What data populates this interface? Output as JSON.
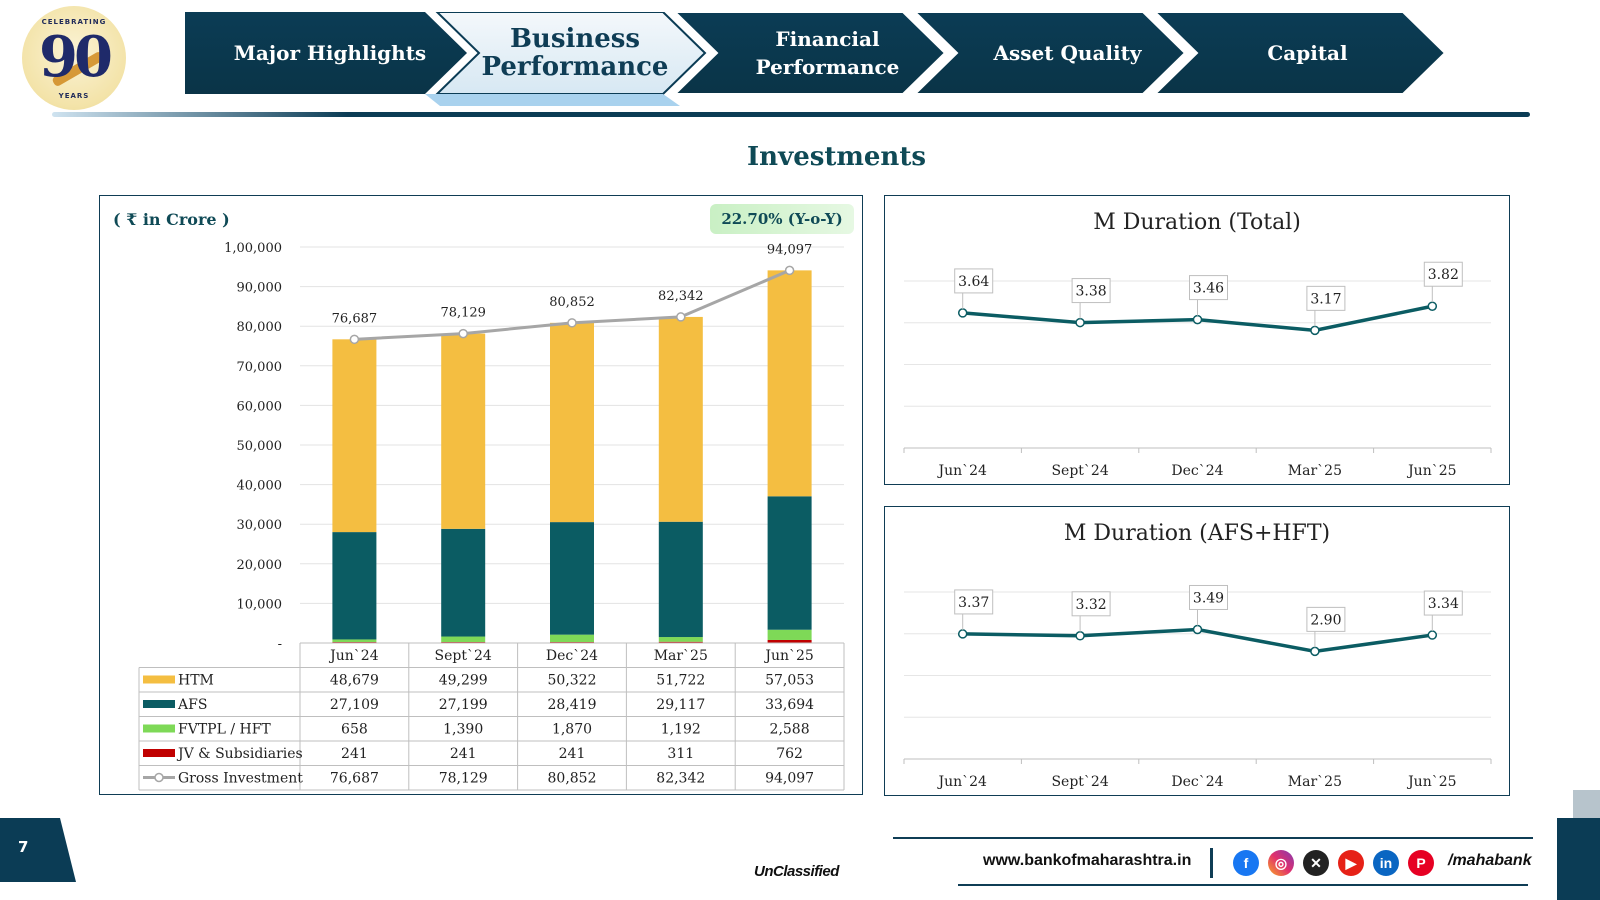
{
  "logo": {
    "top_text": "CELEBRATING",
    "number": "90",
    "bottom_text": "YEARS"
  },
  "nav": {
    "tabs": [
      {
        "label": "Major Highlights",
        "active": false
      },
      {
        "label": "Business Performance",
        "active": true
      },
      {
        "label": "Financial Performance",
        "active": false
      },
      {
        "label": "Asset Quality",
        "active": false
      },
      {
        "label": "Capital",
        "active": false
      }
    ]
  },
  "section_title": "Investments",
  "unit_label": "( ₹ in Crore )",
  "yoy_badge": "22.70% (Y-o-Y)",
  "colors": {
    "htm": "#F4BE41",
    "afs": "#0B5C63",
    "fvtpl": "#7ED957",
    "jv": "#C00000",
    "gross": "#A6A6A6",
    "line": "#0B5C63",
    "navy": "#0F3D55"
  },
  "chart_data": [
    {
      "type": "bar",
      "stacked": true,
      "categories": [
        "Jun`24",
        "Sept`24",
        "Dec`24",
        "Mar`25",
        "Jun`25"
      ],
      "y_tick_labels": [
        "-",
        "10,000",
        "20,000",
        "30,000",
        "40,000",
        "50,000",
        "60,000",
        "70,000",
        "80,000",
        "90,000",
        "1,00,000"
      ],
      "ylim": [
        0,
        100000
      ],
      "series": [
        {
          "name": "HTM",
          "values": [
            48679,
            49299,
            50322,
            51722,
            57053
          ],
          "labels": [
            "48,679",
            "49,299",
            "50,322",
            "51,722",
            "57,053"
          ]
        },
        {
          "name": "AFS",
          "values": [
            27109,
            27199,
            28419,
            29117,
            33694
          ],
          "labels": [
            "27,109",
            "27,199",
            "28,419",
            "29,117",
            "33,694"
          ]
        },
        {
          "name": "FVTPL  / HFT",
          "values": [
            658,
            1390,
            1870,
            1192,
            2588
          ],
          "labels": [
            "658",
            "1,390",
            "1,870",
            "1,192",
            "2,588"
          ]
        },
        {
          "name": "JV & Subsidiaries",
          "values": [
            241,
            241,
            241,
            311,
            762
          ],
          "labels": [
            "241",
            "241",
            "241",
            "311",
            "762"
          ]
        },
        {
          "name": "Gross Investment",
          "type": "line",
          "values": [
            76687,
            78129,
            80852,
            82342,
            94097
          ],
          "labels": [
            "76,687",
            "78,129",
            "80,852",
            "82,342",
            "94,097"
          ]
        }
      ],
      "grid": true,
      "legend": "data-table-below"
    },
    {
      "type": "line",
      "title": "M Duration (Total)",
      "categories": [
        "Jun`24",
        "Sept`24",
        "Dec`24",
        "Mar`25",
        "Jun`25"
      ],
      "values": [
        3.64,
        3.38,
        3.46,
        3.17,
        3.82
      ],
      "labels": [
        "3.64",
        "3.38",
        "3.46",
        "3.17",
        "3.82"
      ],
      "ylim": [
        0,
        4.5
      ],
      "grid": true
    },
    {
      "type": "line",
      "title": "M Duration (AFS+HFT)",
      "categories": [
        "Jun`24",
        "Sept`24",
        "Dec`24",
        "Mar`25",
        "Jun`25"
      ],
      "values": [
        3.37,
        3.32,
        3.49,
        2.9,
        3.34
      ],
      "labels": [
        "3.37",
        "3.32",
        "3.49",
        "2.90",
        "3.34"
      ],
      "ylim": [
        0,
        4.5
      ],
      "grid": true
    }
  ],
  "footer": {
    "page_number": "7",
    "classification": "UnClassified",
    "website": "www.bankofmaharashtra.in",
    "social_icons": [
      "facebook-icon",
      "instagram-icon",
      "x-icon",
      "youtube-icon",
      "linkedin-icon",
      "pinterest-icon"
    ],
    "handle": "/mahabank"
  }
}
